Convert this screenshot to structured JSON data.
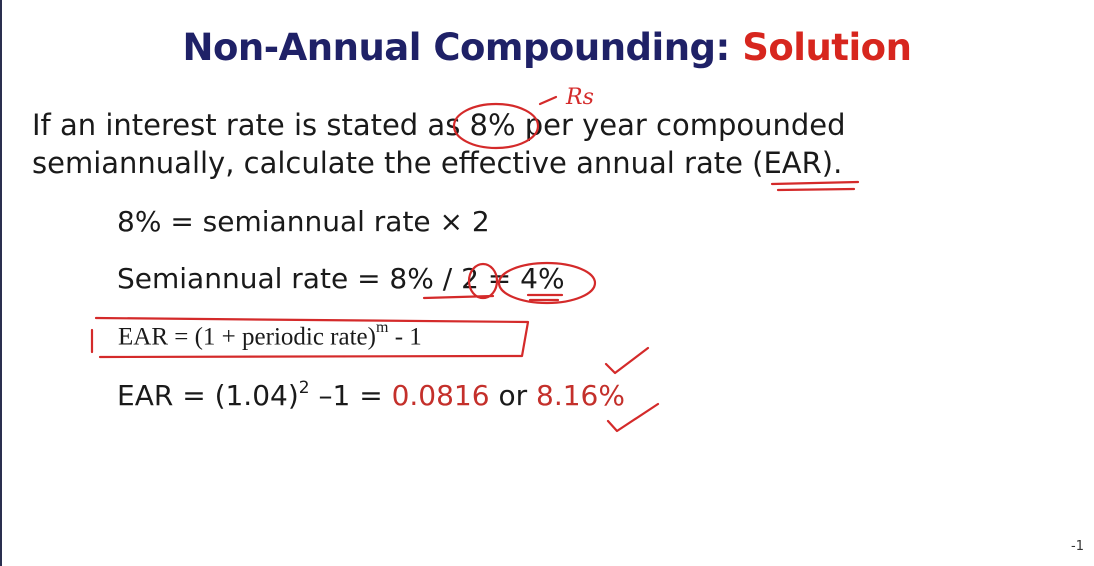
{
  "slide": {
    "title_main": "Non-Annual Compounding:",
    "title_accent": "Solution",
    "question_line1": "If an interest rate is stated as 8% per year compounded",
    "question_line2": "semiannually, calculate the effective annual rate (EAR).",
    "step1": "8% = semiannual rate × 2",
    "step2": "Semiannual rate = 8% / 2 = 4%",
    "formula_base": "EAR = (1 + periodic rate)",
    "formula_exp": "m",
    "formula_tail": " - 1",
    "step3_base": "EAR = (1.04)",
    "step3_exp": "2",
    "step3_mid": " –1 = ",
    "step3_value": "0.0816",
    "step3_or": " or ",
    "step3_percent": "8.16%",
    "handwritten_note": "Rs",
    "page_number": "-1"
  },
  "colors": {
    "title": "#1f2167",
    "accent": "#d7261e",
    "result": "#c4302b",
    "ink": "#d42a2a"
  }
}
